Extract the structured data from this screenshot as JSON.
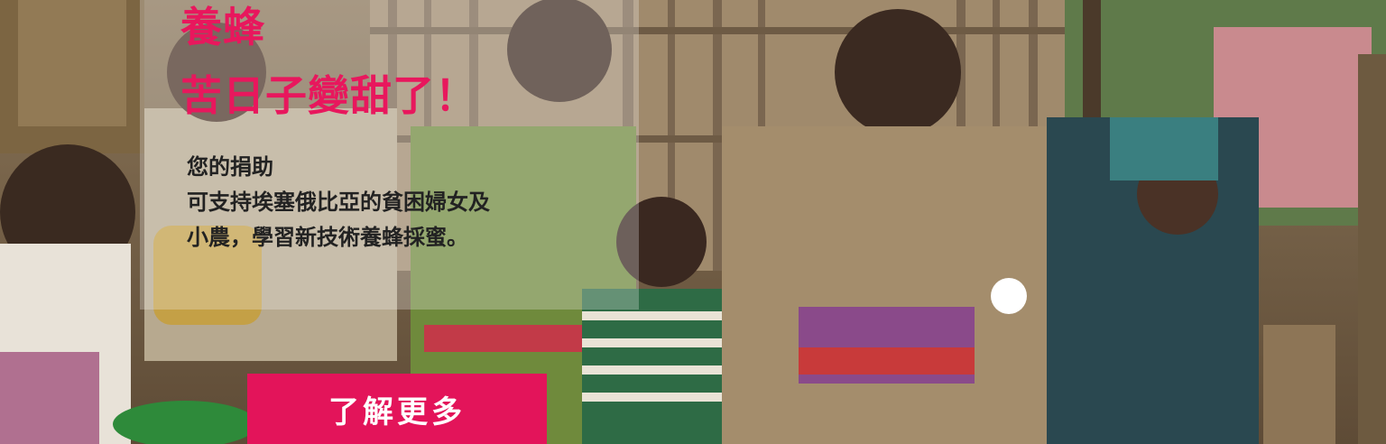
{
  "banner": {
    "headline": [
      "養蜂",
      "苦日子變甜了！"
    ],
    "subtext": [
      "您的捐助",
      "可支持埃塞俄比亞的貧困婦女及",
      "小農，學習新技術養蜂採蜜。"
    ],
    "cta_label": "了解更多"
  },
  "colors": {
    "accent": "#e8175d",
    "button": "#e3145a"
  }
}
